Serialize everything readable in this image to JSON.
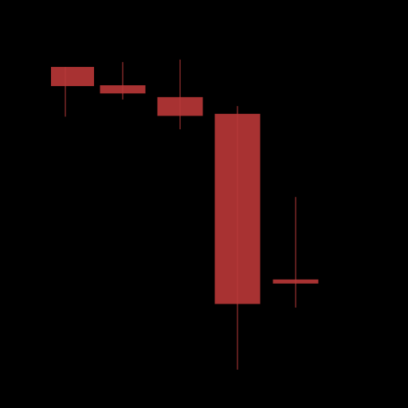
{
  "colors": {
    "background": "#000000",
    "candle_fill": "#a83232",
    "candle_wick": "#b83a3a"
  },
  "chart_data": {
    "type": "candlestick",
    "title": "",
    "xlabel": "",
    "ylabel": "",
    "axes_visible": false,
    "grid": false,
    "legend": "none",
    "ylim": [
      0,
      100
    ],
    "candles": [
      {
        "x": 1,
        "open": 83.6,
        "close": 78.9,
        "high": 83.6,
        "low": 71.4
      },
      {
        "x": 2,
        "open": 79.1,
        "close": 77.1,
        "high": 84.8,
        "low": 75.6
      },
      {
        "x": 3,
        "open": 76.2,
        "close": 71.6,
        "high": 85.4,
        "low": 68.3
      },
      {
        "x": 4,
        "open": 72.1,
        "close": 25.5,
        "high": 74.0,
        "low": 9.4
      },
      {
        "x": 5,
        "open": 31.5,
        "close": 30.5,
        "high": 51.7,
        "low": 24.6
      }
    ]
  }
}
